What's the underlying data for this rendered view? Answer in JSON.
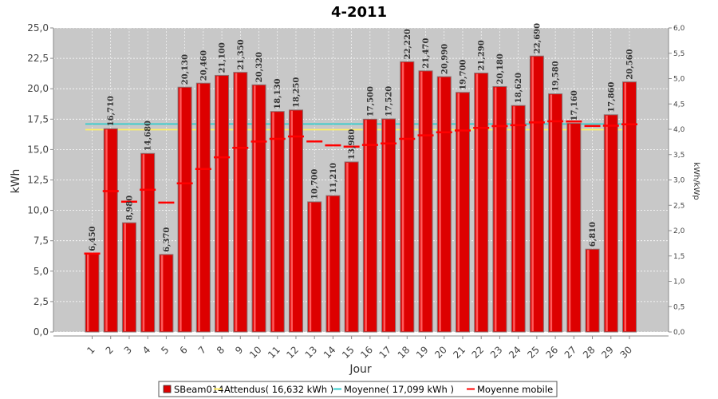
{
  "chart_data": {
    "type": "bar",
    "title": "4-2011",
    "xlabel": "Jour",
    "ylabel": "kWh",
    "y2label": "kWh/kWp",
    "ylim": [
      0,
      25
    ],
    "y2lim": [
      0,
      6
    ],
    "yticks": [
      "0,0",
      "2,5",
      "5,0",
      "7,5",
      "10,0",
      "12,5",
      "15,0",
      "17,5",
      "20,0",
      "22,5",
      "25,0"
    ],
    "y2ticks": [
      "0,0",
      "0,5",
      "1,0",
      "1,5",
      "2,0",
      "2,5",
      "3,0",
      "3,5",
      "4,0",
      "4,5",
      "5,0",
      "5,5",
      "6,0"
    ],
    "categories": [
      "1",
      "2",
      "3",
      "4",
      "5",
      "6",
      "7",
      "8",
      "9",
      "10",
      "11",
      "12",
      "13",
      "14",
      "15",
      "16",
      "17",
      "18",
      "19",
      "20",
      "21",
      "22",
      "23",
      "24",
      "25",
      "26",
      "27",
      "28",
      "29",
      "30"
    ],
    "series": [
      {
        "name": "SBeam014",
        "values": [
          6.45,
          16.71,
          8.98,
          14.68,
          6.37,
          20.13,
          20.46,
          21.1,
          21.35,
          20.32,
          18.13,
          18.25,
          10.7,
          11.21,
          13.98,
          17.5,
          17.52,
          22.22,
          21.47,
          20.99,
          19.7,
          21.29,
          20.18,
          18.62,
          22.69,
          19.58,
          17.16,
          6.81,
          17.86,
          20.56
        ],
        "labels": [
          "6,450",
          "16,710",
          "8,980",
          "14,680",
          "6,370",
          "20,130",
          "20,460",
          "21,100",
          "21,350",
          "20,320",
          "18,130",
          "18,250",
          "10,700",
          "11,210",
          "13,980",
          "17,500",
          "17,520",
          "22,220",
          "21,470",
          "20,990",
          "19,700",
          "21,290",
          "20,180",
          "18,620",
          "22,690",
          "19,580",
          "17,160",
          "6,810",
          "17,860",
          "20,560"
        ],
        "color": "#dd0000"
      },
      {
        "name": "Moyenne mobile",
        "values": [
          6.45,
          11.58,
          10.71,
          11.7,
          10.64,
          12.22,
          13.4,
          14.36,
          15.14,
          15.66,
          15.88,
          16.08,
          15.67,
          15.35,
          15.24,
          15.38,
          15.5,
          15.88,
          16.17,
          16.42,
          16.57,
          16.78,
          16.93,
          17.0,
          17.23,
          17.32,
          17.31,
          16.94,
          16.96,
          17.08
        ],
        "color": "#ff0000"
      }
    ],
    "reference_lines": [
      {
        "name": "Attendus( 16,632 kWh )",
        "value": 16.632,
        "color": "#ffee66"
      },
      {
        "name": "Moyenne( 17,099 kWh )",
        "value": 17.099,
        "color": "#33cccc"
      }
    ],
    "legend": {
      "position": "bottom",
      "items": [
        {
          "label": "SBeam014",
          "color": "#dd0000",
          "kind": "box"
        },
        {
          "label": "Attendus( 16,632 kWh )",
          "color": "#ffee66",
          "kind": "line"
        },
        {
          "label": "Moyenne( 17,099 kWh )",
          "color": "#33cccc",
          "kind": "line"
        },
        {
          "label": "Moyenne mobile",
          "color": "#ff0000",
          "kind": "line"
        }
      ]
    },
    "grid": true,
    "plot_background": "#c8c8c8"
  }
}
